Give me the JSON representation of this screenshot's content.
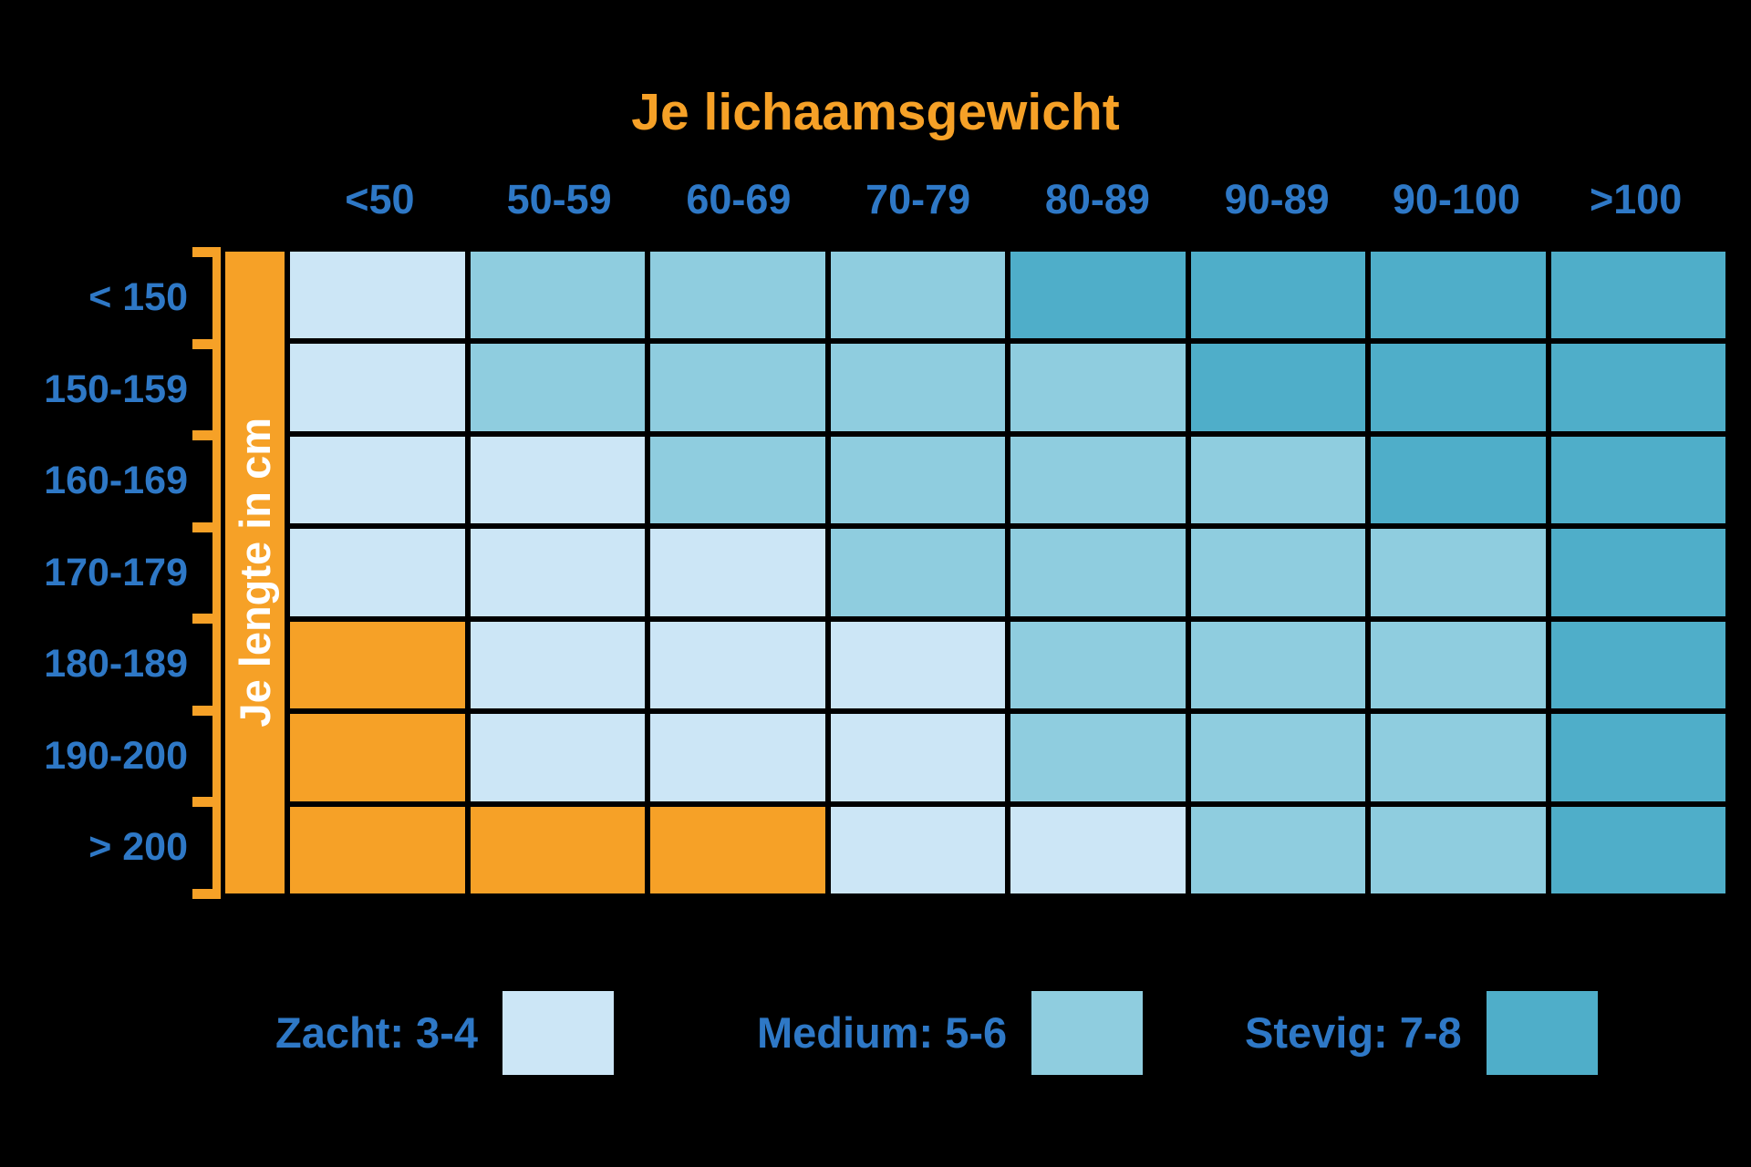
{
  "title": "Je lichaamsgewicht",
  "side_label": "Je lengte in cm",
  "colors": {
    "zacht": "#CCE6F6",
    "medium": "#8FCDDF",
    "stevig": "#4FAEC9",
    "orange": "#F6A127",
    "label_blue": "#2E78C6",
    "background": "#000000",
    "side_text": "#FFFFFF"
  },
  "chart_data": {
    "type": "heatmap",
    "title": "Je lichaamsgewicht",
    "x_axis_label": "Je lichaamsgewicht",
    "y_axis_label": "Je lengte in cm",
    "columns": [
      "<50",
      "50-59",
      "60-69",
      "70-79",
      "80-89",
      "90-89",
      "90-100",
      ">100"
    ],
    "rows": [
      "< 150",
      "150-159",
      "160-169",
      "170-179",
      "180-189",
      "190-200",
      "> 200"
    ],
    "value_meaning": "mattress firmness class per height/weight; orange = no recommendation",
    "values": [
      [
        "zacht",
        "medium",
        "medium",
        "medium",
        "stevig",
        "stevig",
        "stevig",
        "stevig"
      ],
      [
        "zacht",
        "medium",
        "medium",
        "medium",
        "medium",
        "stevig",
        "stevig",
        "stevig"
      ],
      [
        "zacht",
        "zacht",
        "medium",
        "medium",
        "medium",
        "medium",
        "stevig",
        "stevig"
      ],
      [
        "zacht",
        "zacht",
        "zacht",
        "medium",
        "medium",
        "medium",
        "medium",
        "stevig"
      ],
      [
        "orange",
        "zacht",
        "zacht",
        "zacht",
        "medium",
        "medium",
        "medium",
        "stevig"
      ],
      [
        "orange",
        "zacht",
        "zacht",
        "zacht",
        "medium",
        "medium",
        "medium",
        "stevig"
      ],
      [
        "orange",
        "orange",
        "orange",
        "zacht",
        "zacht",
        "medium",
        "medium",
        "stevig"
      ]
    ],
    "legend": [
      {
        "label": "Zacht: 3-4",
        "key": "zacht"
      },
      {
        "label": "Medium: 5-6",
        "key": "medium"
      },
      {
        "label": "Stevig: 7-8",
        "key": "stevig"
      }
    ],
    "legend_position": "bottom",
    "grid": true
  }
}
